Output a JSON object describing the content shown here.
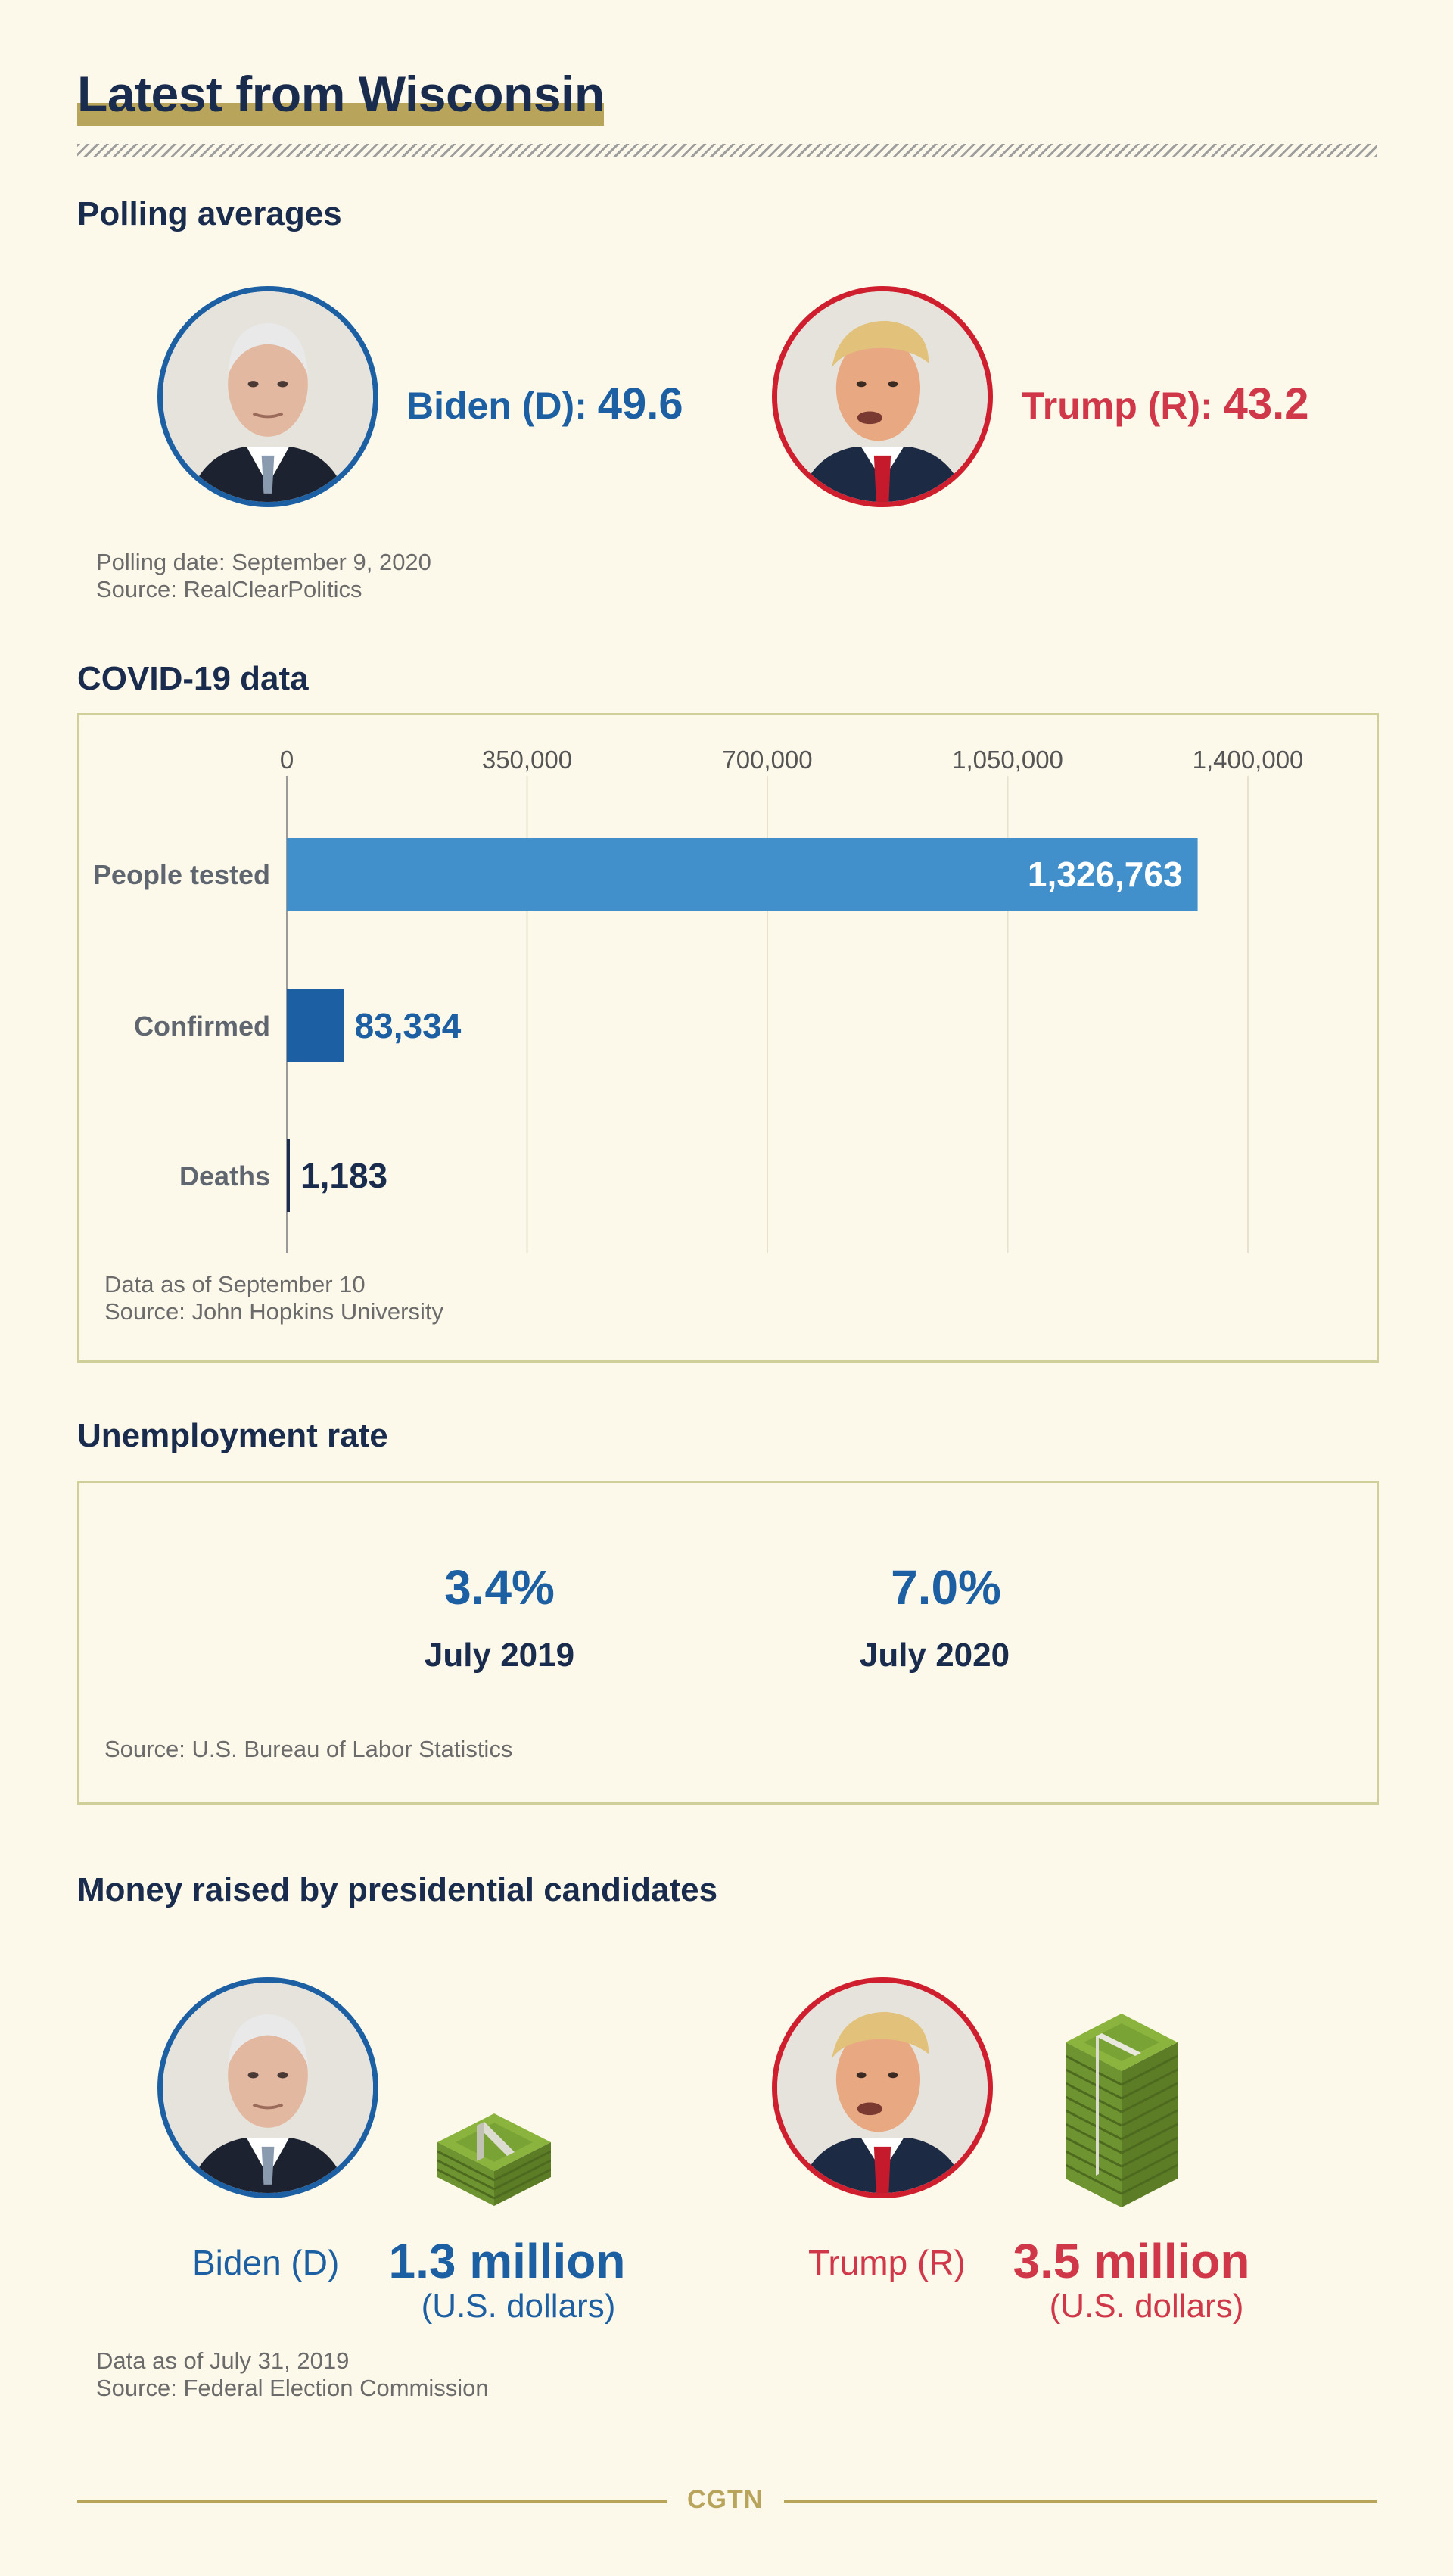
{
  "title": "Latest from Wisconsin",
  "polling": {
    "heading": "Polling averages",
    "biden_label": "Biden (D):",
    "biden_value": "49.6",
    "trump_label": "Trump (R):",
    "trump_value": "43.2",
    "date_note": "Polling date: September 9, 2020",
    "source_note": "Source: RealClearPolitics"
  },
  "covid": {
    "heading": "COVID-19 data",
    "date_note": "Data as of September 10",
    "source_note": "Source: John Hopkins University"
  },
  "chart_data": {
    "type": "bar",
    "orientation": "horizontal",
    "categories": [
      "People tested",
      "Confirmed",
      "Deaths"
    ],
    "values": [
      1326763,
      83334,
      1183
    ],
    "value_labels": [
      "1,326,763",
      "83,334",
      "1,183"
    ],
    "xticks": [
      0,
      350000,
      700000,
      1050000,
      1400000
    ],
    "xtick_labels": [
      "0",
      "350,000",
      "700,000",
      "1,050,000",
      "1,400,000"
    ],
    "xlim": [
      0,
      1400000
    ],
    "grid": true,
    "colors": {
      "People tested": "#418fcb",
      "Confirmed": "#1d5fa3",
      "Deaths": "#1a2c4e"
    }
  },
  "unemployment": {
    "heading": "Unemployment rate",
    "items": [
      {
        "value": "3.4%",
        "date": "July 2019"
      },
      {
        "value": "7.0%",
        "date": "July 2020"
      }
    ],
    "source_note": "Source: U.S. Bureau of Labor Statistics"
  },
  "money": {
    "heading": "Money raised by presidential candidates",
    "biden_name": "Biden (D)",
    "biden_amount": "1.3 million",
    "biden_unit": "(U.S. dollars)",
    "trump_name": "Trump (R)",
    "trump_amount": "3.5 million",
    "trump_unit": "(U.S. dollars)",
    "date_note": "Data as of July 31, 2019",
    "source_note": "Source: Federal Election Commission"
  },
  "footer": {
    "logo": "CGTN"
  },
  "colors": {
    "navy": "#1a2c4e",
    "blue": "#1d5fa3",
    "red": "#cf1f2e",
    "gold": "#b8a45a",
    "background": "#fdf9ea"
  },
  "icons": [
    "biden-portrait",
    "trump-portrait",
    "money-stack-icon"
  ]
}
